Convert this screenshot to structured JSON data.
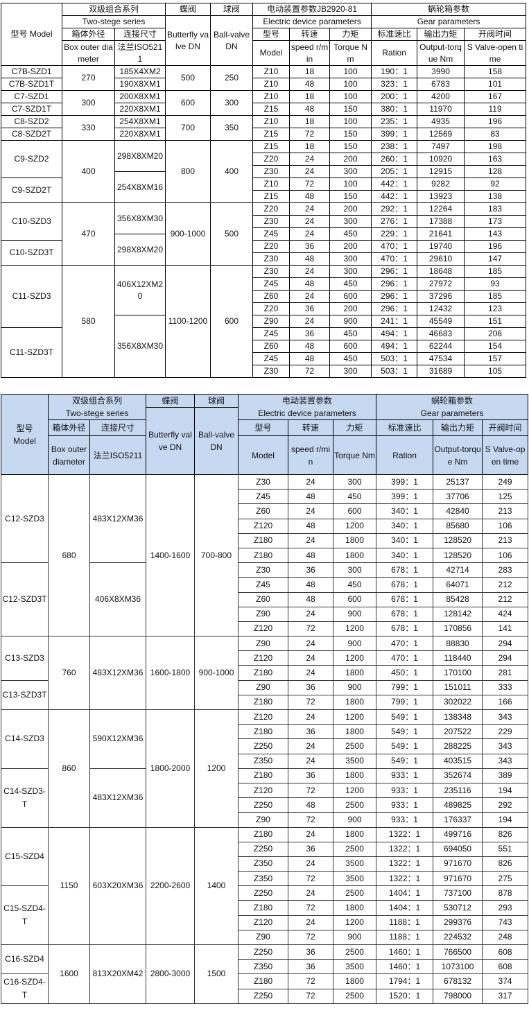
{
  "t1": {
    "header": {
      "model": "型号 Model",
      "series_cn": "双级组合系列",
      "series_en": "Two-stege series",
      "butterfly_cn": "蝶阀",
      "butterfly_en": "Butterfly valve DN",
      "ball_cn": "球阀",
      "ball_en": "Ball-valve DN",
      "electric_cn": "电动装置参数JB2920-81",
      "electric_en": "Electric device parameters",
      "gear_cn": "蜗轮箱参数",
      "gear_en": "Gear parameters",
      "box_cn": "箱体外径",
      "box_en": "Box outer diameter",
      "flange_cn": "连接尺寸",
      "flange_en": "法兰ISO5211",
      "model_cn": "型号",
      "model_en": "Model",
      "speed_cn": "转速",
      "speed_en": "speed r/min",
      "torque_cn": "力矩",
      "torque_en": "Torque Nm",
      "ratio_cn": "标准速比",
      "ratio_en": "Ration",
      "output_cn": "输出力矩",
      "output_en": "Output-torque Nm",
      "time_cn": "开阀时间",
      "time_en": "S Valve-open time"
    },
    "groups": [
      {
        "box": "270",
        "butterfly": "500",
        "ball": "250",
        "models": [
          {
            "name": "C7B-SZD1",
            "rows": 1
          },
          {
            "name": "C7B-SZD1T",
            "rows": 1
          }
        ],
        "flanges": [
          {
            "text": "185X4XM2",
            "half": 2
          },
          {
            "text": "190X8XM1",
            "half": 2
          }
        ],
        "rows": [
          [
            "Z10",
            "18",
            "100",
            "190：1",
            "3990",
            "158"
          ],
          [
            "Z10",
            "48",
            "100",
            "323：1",
            "6783",
            "101"
          ]
        ]
      },
      {
        "box": "300",
        "butterfly": "600",
        "ball": "300",
        "models": [
          {
            "name": "C7-SZD1",
            "rows": 1
          },
          {
            "name": "C7-SZD1T",
            "rows": 1
          }
        ],
        "flanges": [
          {
            "text": "200X8XM1",
            "half": 2
          },
          {
            "text": "220X8XM1",
            "half": 2
          }
        ],
        "rows": [
          [
            "Z10",
            "18",
            "100",
            "200：1",
            "4200",
            "167"
          ],
          [
            "Z15",
            "48",
            "150",
            "380：1",
            "11970",
            "119"
          ]
        ]
      },
      {
        "box": "330",
        "butterfly": "700",
        "ball": "350",
        "models": [
          {
            "name": "C8-SZD2",
            "rows": 1
          },
          {
            "name": "C8-SZD2T",
            "rows": 1
          }
        ],
        "flanges": [
          {
            "text": "254X8XM1",
            "half": 2
          },
          {
            "text": "220X8XM1",
            "half": 2
          }
        ],
        "rows": [
          [
            "Z10",
            "18",
            "100",
            "235：1",
            "4935",
            "196"
          ],
          [
            "Z15",
            "72",
            "150",
            "399：1",
            "12569",
            "83"
          ]
        ]
      },
      {
        "box": "400",
        "butterfly": "800",
        "ball": "400",
        "models": [
          {
            "name": "C9-SZD2",
            "rows": 3
          },
          {
            "name": "C9-SZD2T",
            "rows": 2
          }
        ],
        "flanges": [
          {
            "text": "298X8XM20",
            "half": 5
          },
          {
            "text": "254X8XM16",
            "half": 5
          }
        ],
        "rows": [
          [
            "Z15",
            "18",
            "150",
            "238：1",
            "7497",
            "198"
          ],
          [
            "Z20",
            "24",
            "200",
            "260：1",
            "10920",
            "163"
          ],
          [
            "Z30",
            "24",
            "300",
            "205：1",
            "12915",
            "128"
          ],
          [
            "Z10",
            "72",
            "100",
            "442：1",
            "9282",
            "92"
          ],
          [
            "Z15",
            "48",
            "150",
            "442：1",
            "13923",
            "138"
          ]
        ]
      },
      {
        "box": "470",
        "butterfly": "900-1000",
        "ball": "500",
        "models": [
          {
            "name": "C10-SZD3",
            "rows": 3
          },
          {
            "name": "C10-SZD3T",
            "rows": 2
          }
        ],
        "flanges": [
          {
            "text": "356X8XM30",
            "half": 5
          },
          {
            "text": "298X8XM20",
            "half": 5
          }
        ],
        "rows": [
          [
            "Z20",
            "24",
            "200",
            "292：1",
            "12264",
            "183"
          ],
          [
            "Z30",
            "24",
            "300",
            "276：1",
            "17388",
            "173"
          ],
          [
            "Z45",
            "24",
            "450",
            "229：1",
            "21641",
            "143"
          ],
          [
            "Z20",
            "36",
            "200",
            "470：1",
            "19740",
            "196"
          ],
          [
            "Z30",
            "48",
            "300",
            "470：1",
            "29610",
            "147"
          ]
        ]
      },
      {
        "box": "580",
        "butterfly": "1100-1200",
        "ball": "600",
        "models": [
          {
            "name": "C11-SZD3",
            "rows": 5
          },
          {
            "name": "C11-SZD3T",
            "rows": 4
          }
        ],
        "flanges": [
          {
            "text": "406X12XM20",
            "half": 8
          },
          {
            "text": "356X8XM30",
            "half": 10
          }
        ],
        "rows": [
          [
            "Z30",
            "24",
            "300",
            "296：1",
            "18648",
            "185"
          ],
          [
            "Z45",
            "48",
            "450",
            "296：1",
            "27972",
            "93"
          ],
          [
            "Z60",
            "24",
            "600",
            "296：1",
            "37296",
            "185"
          ],
          [
            "Z20",
            "36",
            "200",
            "296：1",
            "12432",
            "123"
          ],
          [
            "Z90",
            "24",
            "900",
            "241：1",
            "45549",
            "151"
          ],
          [
            "Z45",
            "36",
            "450",
            "494：1",
            "46683",
            "206"
          ],
          [
            "Z60",
            "48",
            "600",
            "494：1",
            "62244",
            "154"
          ],
          [
            "Z45",
            "48",
            "450",
            "503：1",
            "47534",
            "157"
          ],
          [
            "Z30",
            "72",
            "300",
            "503：1",
            "31689",
            "105"
          ]
        ]
      }
    ]
  },
  "t2": {
    "header": {
      "model_a": "型号",
      "model_b": "Model",
      "series_cn": "双级组合系列",
      "series_en": "Two-stege series",
      "butterfly_cn": "蝶阀",
      "butterfly_en": "Butterfly valve DN",
      "ball_cn": "球阀",
      "ball_en": "Ball-valve DN",
      "electric_cn": "电动装置参数",
      "electric_en": "Electric device parameters",
      "gear_cn": "蜗轮箱参数",
      "gear_en": "Gear parameters",
      "box_cn": "箱体外径",
      "box_en": "Box outer diameter",
      "flange_cn": "连接尺寸",
      "flange_en": "法兰ISO5211",
      "model_cn": "型号",
      "model_en": "Model",
      "speed_cn": "转速",
      "speed_en": "speed r/min",
      "torque_cn": "力矩",
      "torque_en": "Torque Nm",
      "ratio_cn": "标准速比",
      "ratio_en": "Ration",
      "output_cn": "输出力矩",
      "output_en": "Output-torque Nm",
      "time_cn": "开阀时间",
      "time_en": "S Valve-open time"
    },
    "groups": [
      {
        "box": "680",
        "butterfly": "1400-1600",
        "ball": "700-800",
        "models": [
          {
            "name": "C12-SZD3",
            "rows": 6
          },
          {
            "name": "C12-SZD3T",
            "rows": 5
          }
        ],
        "flanges": [
          {
            "text": "483X12XM36",
            "half": 12
          },
          {
            "text": "406X8XM36",
            "half": 10
          }
        ],
        "rows": [
          [
            "Z30",
            "24",
            "300",
            "399：1",
            "25137",
            "249"
          ],
          [
            "Z45",
            "48",
            "450",
            "399：1",
            "37706",
            "125"
          ],
          [
            "Z60",
            "24",
            "600",
            "340：1",
            "42840",
            "213"
          ],
          [
            "Z120",
            "48",
            "1200",
            "340：1",
            "85680",
            "106"
          ],
          [
            "Z180",
            "24",
            "1800",
            "340：1",
            "128520",
            "213"
          ],
          [
            "Z180",
            "48",
            "1800",
            "340：1",
            "128520",
            "106"
          ],
          [
            "Z30",
            "36",
            "300",
            "678：1",
            "42714",
            "283"
          ],
          [
            "Z45",
            "48",
            "450",
            "678：1",
            "64071",
            "212"
          ],
          [
            "Z60",
            "48",
            "600",
            "678：1",
            "85428",
            "212"
          ],
          [
            "Z90",
            "24",
            "900",
            "678：1",
            "128142",
            "424"
          ],
          [
            "Z120",
            "72",
            "1200",
            "678：1",
            "170856",
            "141"
          ]
        ]
      },
      {
        "box": "760",
        "butterfly": "1600-1800",
        "ball": "900-1000",
        "models": [
          {
            "name": "C13-SZD3",
            "rows": 3
          },
          {
            "name": "C13-SZD3T",
            "rows": 2
          }
        ],
        "flanges": [
          {
            "text": "483X12XM36",
            "half": 10
          }
        ],
        "rows": [
          [
            "Z90",
            "24",
            "900",
            "470：1",
            "88830",
            "294"
          ],
          [
            "Z120",
            "24",
            "1200",
            "470：1",
            "118440",
            "294"
          ],
          [
            "Z180",
            "24",
            "1800",
            "450：1",
            "170100",
            "281"
          ],
          [
            "Z90",
            "36",
            "900",
            "799：1",
            "151011",
            "333"
          ],
          [
            "Z180",
            "72",
            "1800",
            "799：1",
            "302022",
            "166"
          ]
        ]
      },
      {
        "box": "860",
        "butterfly": "1800-2000",
        "ball": "1200",
        "models": [
          {
            "name": "C14-SZD3",
            "rows": 4
          },
          {
            "name": "C14-SZD3-T",
            "rows": 4
          }
        ],
        "flanges": [
          {
            "text": "590X12XM36",
            "half": 8
          },
          {
            "text": "483X12XM36",
            "half": 8
          }
        ],
        "rows": [
          [
            "Z120",
            "24",
            "1200",
            "549：1",
            "138348",
            "343"
          ],
          [
            "Z180",
            "36",
            "1800",
            "549：1",
            "207522",
            "229"
          ],
          [
            "Z250",
            "24",
            "2500",
            "549：1",
            "288225",
            "343"
          ],
          [
            "Z350",
            "24",
            "3500",
            "549：1",
            "403515",
            "343"
          ],
          [
            "Z180",
            "36",
            "1800",
            "933：1",
            "352674",
            "389"
          ],
          [
            "Z120",
            "72",
            "1200",
            "933：1",
            "235116",
            "194"
          ],
          [
            "Z250",
            "48",
            "2500",
            "933：1",
            "489825",
            "292"
          ],
          [
            "Z90",
            "72",
            "900",
            "933：1",
            "176337",
            "194"
          ]
        ]
      },
      {
        "box": "1150",
        "butterfly": "2200-2600",
        "ball": "1400",
        "models": [
          {
            "name": "C15-SZD4",
            "rows": 4
          },
          {
            "name": "C15-SZD4-T",
            "rows": 4
          }
        ],
        "flanges": [
          {
            "text": "603X20XM36",
            "half": 16
          }
        ],
        "rows": [
          [
            "Z180",
            "24",
            "1800",
            "1322：1",
            "499716",
            "826"
          ],
          [
            "Z250",
            "36",
            "2500",
            "1322：1",
            "694050",
            "551"
          ],
          [
            "Z350",
            "24",
            "3500",
            "1322：1",
            "971670",
            "826"
          ],
          [
            "Z350",
            "72",
            "3500",
            "1322：1",
            "971670",
            "275"
          ],
          [
            "Z250",
            "24",
            "2500",
            "1404：1",
            "737100",
            "878"
          ],
          [
            "Z180",
            "72",
            "1800",
            "1404：1",
            "530712",
            "293"
          ],
          [
            "Z120",
            "24",
            "1200",
            "1188：1",
            "299376",
            "743"
          ],
          [
            "Z90",
            "72",
            "900",
            "1188：1",
            "224532",
            "248"
          ]
        ]
      },
      {
        "box": "1600",
        "butterfly": "2800-3000",
        "ball": "1500",
        "models": [
          {
            "name": "C16-SZD4",
            "rows": 2
          },
          {
            "name": "C16-SZD4-T",
            "rows": 2
          }
        ],
        "flanges": [
          {
            "text": "813X20XM42",
            "half": 8
          }
        ],
        "rows": [
          [
            "Z250",
            "36",
            "2500",
            "1460：1",
            "766500",
            "608"
          ],
          [
            "Z350",
            "36",
            "3500",
            "1460：1",
            "1073100",
            "608"
          ],
          [
            "Z180",
            "72",
            "1800",
            "1794：1",
            "678132",
            "374"
          ],
          [
            "Z250",
            "72",
            "2500",
            "1520：1",
            "798000",
            "317"
          ]
        ]
      }
    ]
  }
}
